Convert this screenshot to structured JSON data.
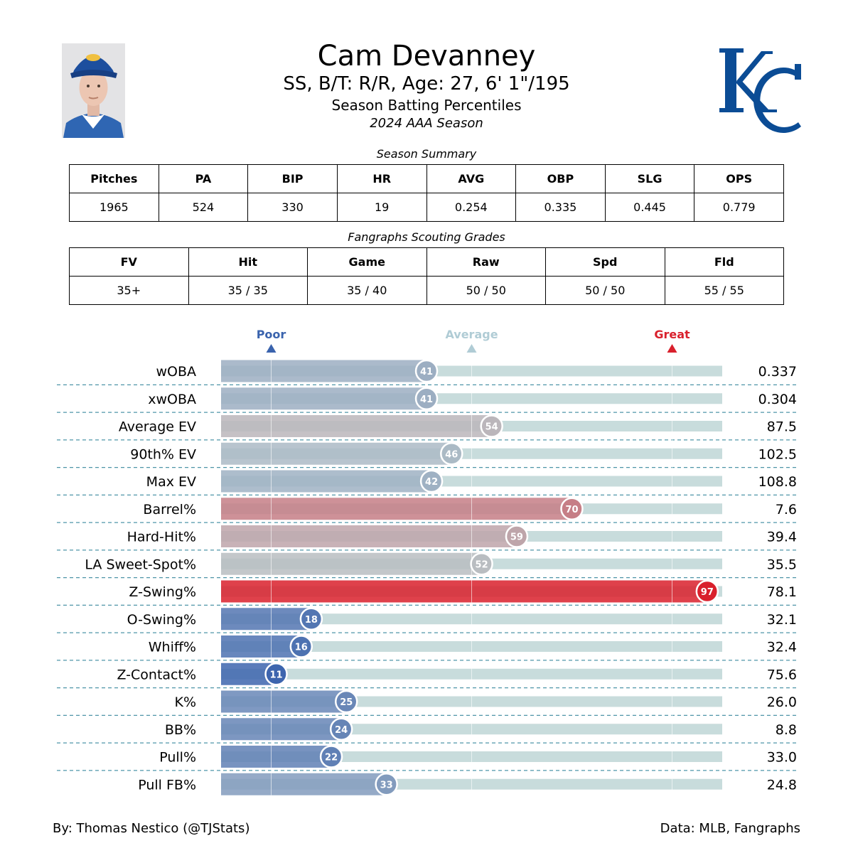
{
  "player": {
    "name": "Cam Devanney",
    "info": "SS, B/T: R/R, Age: 27, 6' 1\"/195",
    "subtitle": "Season Batting Percentiles",
    "season": "2024 AAA Season"
  },
  "team_logo": "KC",
  "summary": {
    "title": "Season Summary",
    "headers": [
      "Pitches",
      "PA",
      "BIP",
      "HR",
      "AVG",
      "OBP",
      "SLG",
      "OPS"
    ],
    "values": [
      "1965",
      "524",
      "330",
      "19",
      "0.254",
      "0.335",
      "0.445",
      "0.779"
    ]
  },
  "grades": {
    "title": "Fangraphs Scouting Grades",
    "headers": [
      "FV",
      "Hit",
      "Game",
      "Raw",
      "Spd",
      "Fld"
    ],
    "values": [
      "35+",
      "35 / 35",
      "35 / 40",
      "50 / 50",
      "50 / 50",
      "55 / 55"
    ]
  },
  "chart_data": {
    "type": "bar",
    "orientation": "horizontal",
    "categories": [
      "wOBA",
      "xwOBA",
      "Average EV",
      "90th% EV",
      "Max EV",
      "Barrel%",
      "Hard-Hit%",
      "LA Sweet-Spot%",
      "Z-Swing%",
      "O-Swing%",
      "Whiff%",
      "Z-Contact%",
      "K%",
      "BB%",
      "Pull%",
      "Pull FB%"
    ],
    "values": [
      41,
      41,
      54,
      46,
      42,
      70,
      59,
      52,
      97,
      18,
      16,
      11,
      25,
      24,
      22,
      33
    ],
    "stat_values": [
      "0.337",
      "0.304",
      "87.5",
      "102.5",
      "108.8",
      "7.6",
      "39.4",
      "35.5",
      "78.1",
      "32.1",
      "32.4",
      "75.6",
      "26.0",
      "8.8",
      "33.0",
      "24.8"
    ],
    "xlim": [
      0,
      100
    ],
    "markers": [
      {
        "label": "Poor",
        "value": 10,
        "color": "#3a63ad"
      },
      {
        "label": "Average",
        "value": 50,
        "color": "#b0ccd5"
      },
      {
        "label": "Great",
        "value": 90,
        "color": "#d9202c"
      }
    ],
    "colors": {
      "low": "#3a63ad",
      "mid": "#b8c4c8",
      "high": "#d9202c",
      "track": "#c8dcdc",
      "divider": "#4f95a8"
    }
  },
  "footer": {
    "left": "By: Thomas Nestico (@TJStats)",
    "right": "Data: MLB, Fangraphs"
  }
}
